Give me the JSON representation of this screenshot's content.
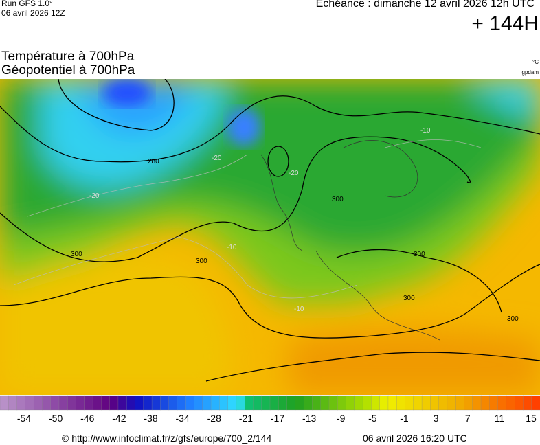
{
  "header": {
    "run": "Run GFS 1.0°",
    "run_date": "06 avril 2026 12Z",
    "valid": "Echéance : dimanche 12 avril 2026 12h UTC",
    "lead": "+ 144H"
  },
  "titles": {
    "line1": "Température à 700hPa",
    "line2": "Géopotentiel à 700hPa",
    "unit1": "°C",
    "unit2": "gpdam"
  },
  "contour_labels": [
    "280",
    "300",
    "300",
    "300",
    "300",
    "300",
    "300",
    "-20",
    "-20",
    "-20",
    "-10",
    "-10",
    "-10"
  ],
  "colorbar_labels": [
    -54,
    -50,
    -46,
    -42,
    -38,
    -34,
    -28,
    -21,
    -17,
    -13,
    -9,
    -5,
    -1,
    3,
    7,
    11,
    15
  ],
  "footer": {
    "source": "© http://www.infoclimat.fr/z/gfs/europe/700_2/144",
    "generated": "06 avril 2026 16:20 UTC"
  }
}
